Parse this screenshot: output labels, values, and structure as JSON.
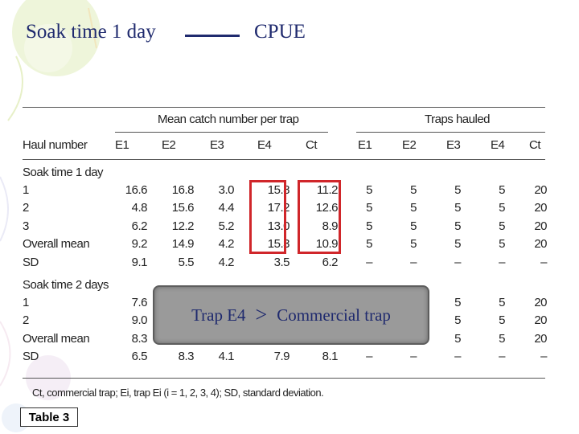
{
  "slide": {
    "title_left": "Soak time 1 day",
    "title_right": "CPUE"
  },
  "table": {
    "group_header_left": "Mean catch number per trap",
    "group_header_right": "Traps hauled",
    "columns": [
      "Haul number",
      "E1",
      "E2",
      "E3",
      "E4",
      "Ct",
      "E1",
      "E2",
      "E3",
      "E4",
      "Ct"
    ],
    "section1_label": "Soak time 1 day",
    "section1_rows": [
      {
        "label": "1",
        "values": [
          "16.6",
          "16.8",
          "3.0",
          "15.8",
          "11.2",
          "5",
          "5",
          "5",
          "5",
          "20"
        ]
      },
      {
        "label": "2",
        "values": [
          "4.8",
          "15.6",
          "4.4",
          "17.2",
          "12.6",
          "5",
          "5",
          "5",
          "5",
          "20"
        ]
      },
      {
        "label": "3",
        "values": [
          "6.2",
          "12.2",
          "5.2",
          "13.0",
          "8.9",
          "5",
          "5",
          "5",
          "5",
          "20"
        ]
      },
      {
        "label": "Overall mean",
        "values": [
          "9.2",
          "14.9",
          "4.2",
          "15.3",
          "10.9",
          "5",
          "5",
          "5",
          "5",
          "20"
        ]
      },
      {
        "label": "SD",
        "values": [
          "9.1",
          "5.5",
          "4.2",
          "3.5",
          "6.2",
          "–",
          "–",
          "–",
          "–",
          "–"
        ]
      }
    ],
    "section2_label": "Soak time 2 days",
    "section2_rows": [
      {
        "label": "1",
        "values": [
          "7.6",
          "",
          "",
          "",
          "",
          "",
          "",
          "5",
          "5",
          "20"
        ]
      },
      {
        "label": "2",
        "values": [
          "9.0",
          "",
          "",
          "",
          "",
          "",
          "",
          "5",
          "5",
          "20"
        ]
      },
      {
        "label": "Overall mean",
        "values": [
          "8.3",
          "",
          "",
          "",
          "",
          "",
          "",
          "5",
          "5",
          "20"
        ]
      },
      {
        "label": "SD",
        "values": [
          "6.5",
          "8.3",
          "4.1",
          "7.9",
          "8.1",
          "–",
          "–",
          "–",
          "–",
          "–"
        ]
      }
    ],
    "footnote": "Ct, commercial trap; Ei, trap Ei (i = 1, 2, 3, 4); SD, standard deviation."
  },
  "callout": {
    "left": "Trap E4",
    "symbol": ">",
    "right": "Commercial trap"
  },
  "table_tag": "Table 3",
  "colors": {
    "title": "#1f2a6e",
    "highlight": "#d0262a",
    "callout_bg": "#9a9a9a"
  }
}
